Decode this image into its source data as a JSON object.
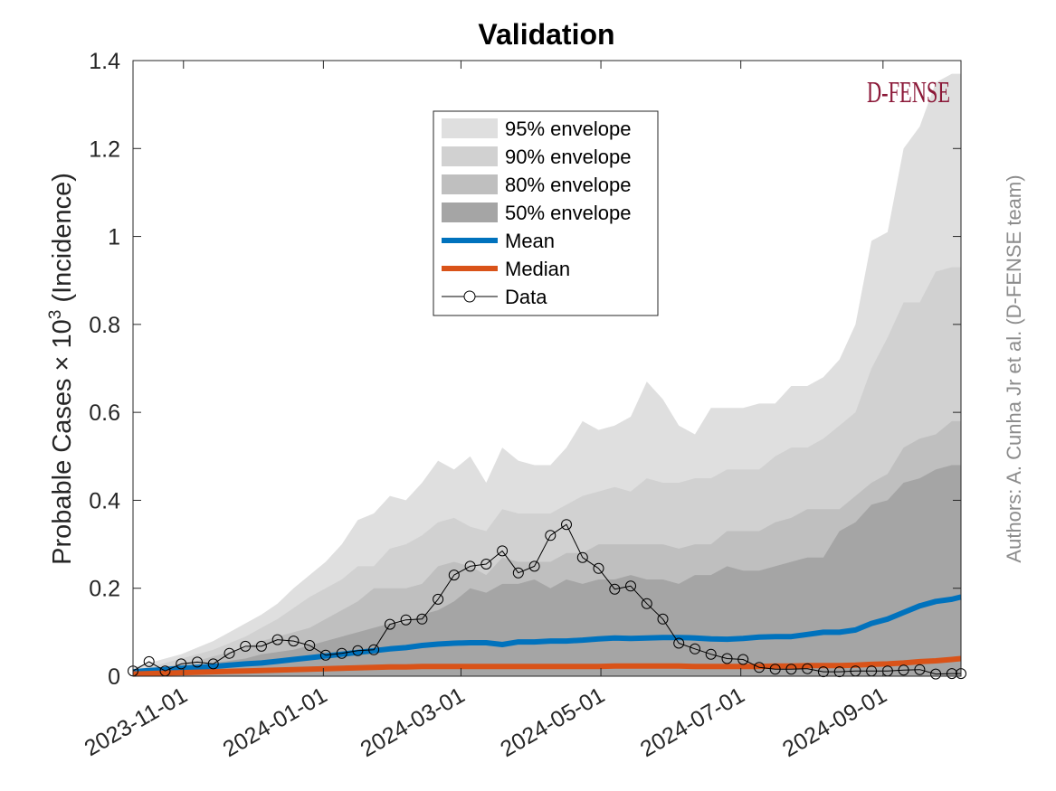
{
  "chart_data": {
    "type": "area",
    "title": "Validation",
    "ylabel_prefix": "Probable Cases × 10",
    "ylabel_exponent": "3",
    "ylabel_suffix": " (Incidence)",
    "xlabel": "",
    "ylim": [
      0,
      1.4
    ],
    "xlim": [
      "2023-10-10",
      "2024-10-05"
    ],
    "x_scale": "date",
    "grid": false,
    "legend_position": "top-center",
    "y_ticks": [
      0,
      0.2,
      0.4,
      0.6,
      0.8,
      1,
      1.2,
      1.4
    ],
    "y_tick_labels": [
      "0",
      "0.2",
      "0.4",
      "0.6",
      "0.8",
      "1",
      "1.2",
      "1.4"
    ],
    "x_ticks": [
      "2023-11-01",
      "2024-01-01",
      "2024-03-01",
      "2024-05-01",
      "2024-07-01",
      "2024-09-01"
    ],
    "dates": [
      "2023-10-10",
      "2023-10-17",
      "2023-10-24",
      "2023-10-31",
      "2023-11-07",
      "2023-11-14",
      "2023-11-21",
      "2023-11-28",
      "2023-12-05",
      "2023-12-12",
      "2023-12-19",
      "2023-12-26",
      "2024-01-02",
      "2024-01-09",
      "2024-01-16",
      "2024-01-23",
      "2024-01-30",
      "2024-02-06",
      "2024-02-13",
      "2024-02-20",
      "2024-02-27",
      "2024-03-05",
      "2024-03-12",
      "2024-03-19",
      "2024-03-26",
      "2024-04-02",
      "2024-04-09",
      "2024-04-16",
      "2024-04-23",
      "2024-04-30",
      "2024-05-07",
      "2024-05-14",
      "2024-05-21",
      "2024-05-28",
      "2024-06-04",
      "2024-06-11",
      "2024-06-18",
      "2024-06-25",
      "2024-07-02",
      "2024-07-09",
      "2024-07-16",
      "2024-07-23",
      "2024-07-30",
      "2024-08-06",
      "2024-08-13",
      "2024-08-20",
      "2024-08-27",
      "2024-09-03",
      "2024-09-10",
      "2024-09-17",
      "2024-09-24",
      "2024-10-01",
      "2024-10-05"
    ],
    "envelopes": [
      {
        "name": "95% envelope",
        "color": "#dfdfdf",
        "upper": [
          0.02,
          0.03,
          0.04,
          0.05,
          0.065,
          0.08,
          0.1,
          0.12,
          0.14,
          0.165,
          0.2,
          0.23,
          0.26,
          0.3,
          0.355,
          0.37,
          0.41,
          0.4,
          0.44,
          0.49,
          0.47,
          0.5,
          0.44,
          0.52,
          0.49,
          0.48,
          0.48,
          0.52,
          0.58,
          0.56,
          0.57,
          0.59,
          0.67,
          0.63,
          0.57,
          0.55,
          0.61,
          0.61,
          0.61,
          0.62,
          0.62,
          0.66,
          0.66,
          0.68,
          0.72,
          0.8,
          0.99,
          1.01,
          1.2,
          1.25,
          1.35,
          1.37,
          1.37
        ],
        "lower": [
          0,
          0,
          0,
          0,
          0,
          0,
          0,
          0,
          0,
          0,
          0,
          0,
          0,
          0,
          0,
          0,
          0,
          0,
          0,
          0,
          0,
          0,
          0,
          0,
          0,
          0,
          0,
          0,
          0,
          0,
          0,
          0,
          0,
          0,
          0,
          0,
          0,
          0,
          0,
          0,
          0,
          0,
          0,
          0,
          0,
          0,
          0,
          0,
          0,
          0,
          0,
          0,
          0
        ]
      },
      {
        "name": "90% envelope",
        "color": "#d1d1d1",
        "upper": [
          0.015,
          0.02,
          0.03,
          0.04,
          0.05,
          0.06,
          0.075,
          0.09,
          0.11,
          0.13,
          0.155,
          0.18,
          0.2,
          0.22,
          0.25,
          0.25,
          0.29,
          0.3,
          0.32,
          0.35,
          0.36,
          0.34,
          0.33,
          0.38,
          0.37,
          0.37,
          0.37,
          0.39,
          0.41,
          0.42,
          0.43,
          0.42,
          0.45,
          0.44,
          0.44,
          0.45,
          0.45,
          0.47,
          0.47,
          0.47,
          0.5,
          0.52,
          0.52,
          0.54,
          0.57,
          0.6,
          0.7,
          0.77,
          0.85,
          0.85,
          0.92,
          0.93,
          0.93
        ],
        "lower": [
          0,
          0,
          0,
          0,
          0,
          0,
          0,
          0,
          0,
          0,
          0,
          0,
          0,
          0,
          0,
          0,
          0,
          0,
          0,
          0,
          0,
          0,
          0,
          0,
          0,
          0,
          0,
          0,
          0,
          0,
          0,
          0,
          0,
          0,
          0,
          0,
          0,
          0,
          0,
          0,
          0,
          0,
          0,
          0,
          0,
          0,
          0,
          0,
          0,
          0,
          0,
          0,
          0
        ]
      },
      {
        "name": "80% envelope",
        "color": "#bfbfbf",
        "upper": [
          0.01,
          0.015,
          0.02,
          0.03,
          0.035,
          0.045,
          0.055,
          0.065,
          0.08,
          0.09,
          0.1,
          0.11,
          0.13,
          0.15,
          0.17,
          0.2,
          0.2,
          0.2,
          0.21,
          0.25,
          0.26,
          0.25,
          0.23,
          0.27,
          0.26,
          0.26,
          0.26,
          0.28,
          0.28,
          0.3,
          0.3,
          0.3,
          0.3,
          0.3,
          0.29,
          0.3,
          0.3,
          0.33,
          0.33,
          0.33,
          0.35,
          0.36,
          0.38,
          0.38,
          0.38,
          0.41,
          0.44,
          0.46,
          0.52,
          0.54,
          0.55,
          0.58,
          0.58
        ],
        "lower": [
          0,
          0,
          0,
          0,
          0,
          0,
          0,
          0,
          0,
          0,
          0,
          0,
          0,
          0,
          0,
          0,
          0,
          0,
          0,
          0,
          0,
          0,
          0,
          0,
          0,
          0,
          0,
          0,
          0,
          0,
          0,
          0,
          0,
          0,
          0,
          0,
          0,
          0,
          0,
          0,
          0,
          0,
          0,
          0,
          0,
          0,
          0,
          0,
          0,
          0,
          0,
          0,
          0
        ]
      },
      {
        "name": "50% envelope",
        "color": "#a5a5a5",
        "upper": [
          0.008,
          0.012,
          0.015,
          0.02,
          0.025,
          0.03,
          0.035,
          0.04,
          0.05,
          0.055,
          0.06,
          0.07,
          0.08,
          0.09,
          0.1,
          0.11,
          0.12,
          0.12,
          0.14,
          0.15,
          0.17,
          0.2,
          0.19,
          0.21,
          0.21,
          0.22,
          0.2,
          0.22,
          0.21,
          0.22,
          0.22,
          0.23,
          0.22,
          0.22,
          0.21,
          0.23,
          0.23,
          0.25,
          0.24,
          0.24,
          0.25,
          0.26,
          0.27,
          0.27,
          0.33,
          0.35,
          0.39,
          0.4,
          0.44,
          0.45,
          0.47,
          0.48,
          0.48
        ],
        "lower": [
          0,
          0,
          0,
          0,
          0,
          0,
          0,
          0,
          0,
          0,
          0,
          0,
          0,
          0,
          0,
          0,
          0,
          0,
          0,
          0,
          0,
          0,
          0,
          0,
          0,
          0,
          0,
          0,
          0,
          0,
          0,
          0,
          0,
          0,
          0,
          0,
          0,
          0,
          0,
          0,
          0,
          0,
          0,
          0,
          0,
          0,
          0,
          0,
          0,
          0,
          0,
          0,
          0
        ]
      }
    ],
    "series": [
      {
        "name": "Mean",
        "color": "#0072bd",
        "values": [
          0.01,
          0.013,
          0.015,
          0.018,
          0.02,
          0.022,
          0.025,
          0.028,
          0.03,
          0.034,
          0.038,
          0.042,
          0.046,
          0.05,
          0.054,
          0.058,
          0.062,
          0.065,
          0.07,
          0.073,
          0.075,
          0.076,
          0.076,
          0.072,
          0.078,
          0.078,
          0.08,
          0.08,
          0.082,
          0.085,
          0.087,
          0.086,
          0.087,
          0.088,
          0.088,
          0.087,
          0.085,
          0.084,
          0.086,
          0.089,
          0.09,
          0.09,
          0.095,
          0.1,
          0.1,
          0.105,
          0.12,
          0.13,
          0.145,
          0.16,
          0.17,
          0.175,
          0.18
        ]
      },
      {
        "name": "Median",
        "color": "#d95319",
        "values": [
          0.005,
          0.006,
          0.007,
          0.008,
          0.009,
          0.01,
          0.011,
          0.012,
          0.013,
          0.014,
          0.015,
          0.016,
          0.017,
          0.018,
          0.019,
          0.02,
          0.021,
          0.021,
          0.022,
          0.022,
          0.022,
          0.022,
          0.022,
          0.022,
          0.022,
          0.022,
          0.022,
          0.022,
          0.022,
          0.022,
          0.023,
          0.023,
          0.023,
          0.023,
          0.023,
          0.022,
          0.022,
          0.022,
          0.022,
          0.022,
          0.023,
          0.023,
          0.024,
          0.024,
          0.024,
          0.025,
          0.027,
          0.028,
          0.03,
          0.033,
          0.035,
          0.038,
          0.04
        ]
      },
      {
        "name": "Data",
        "color": "#000000",
        "marker": "circle",
        "values": [
          0.012,
          0.033,
          0.012,
          0.028,
          0.032,
          0.028,
          0.052,
          0.068,
          0.068,
          0.083,
          0.08,
          0.07,
          0.048,
          0.052,
          0.058,
          0.06,
          0.118,
          0.128,
          0.13,
          0.175,
          0.23,
          0.25,
          0.255,
          0.285,
          0.235,
          0.25,
          0.32,
          0.345,
          0.27,
          0.245,
          0.198,
          0.205,
          0.165,
          0.13,
          0.075,
          0.062,
          0.05,
          0.04,
          0.038,
          0.02,
          0.016,
          0.016,
          0.017,
          0.01,
          0.01,
          0.012,
          0.012,
          0.012,
          0.014,
          0.015,
          0.005,
          0.006,
          0.006
        ]
      }
    ],
    "brand_label": "D-FENSE",
    "authors_label": "Authors: A. Cunha Jr et al. (D-FENSE team)"
  }
}
